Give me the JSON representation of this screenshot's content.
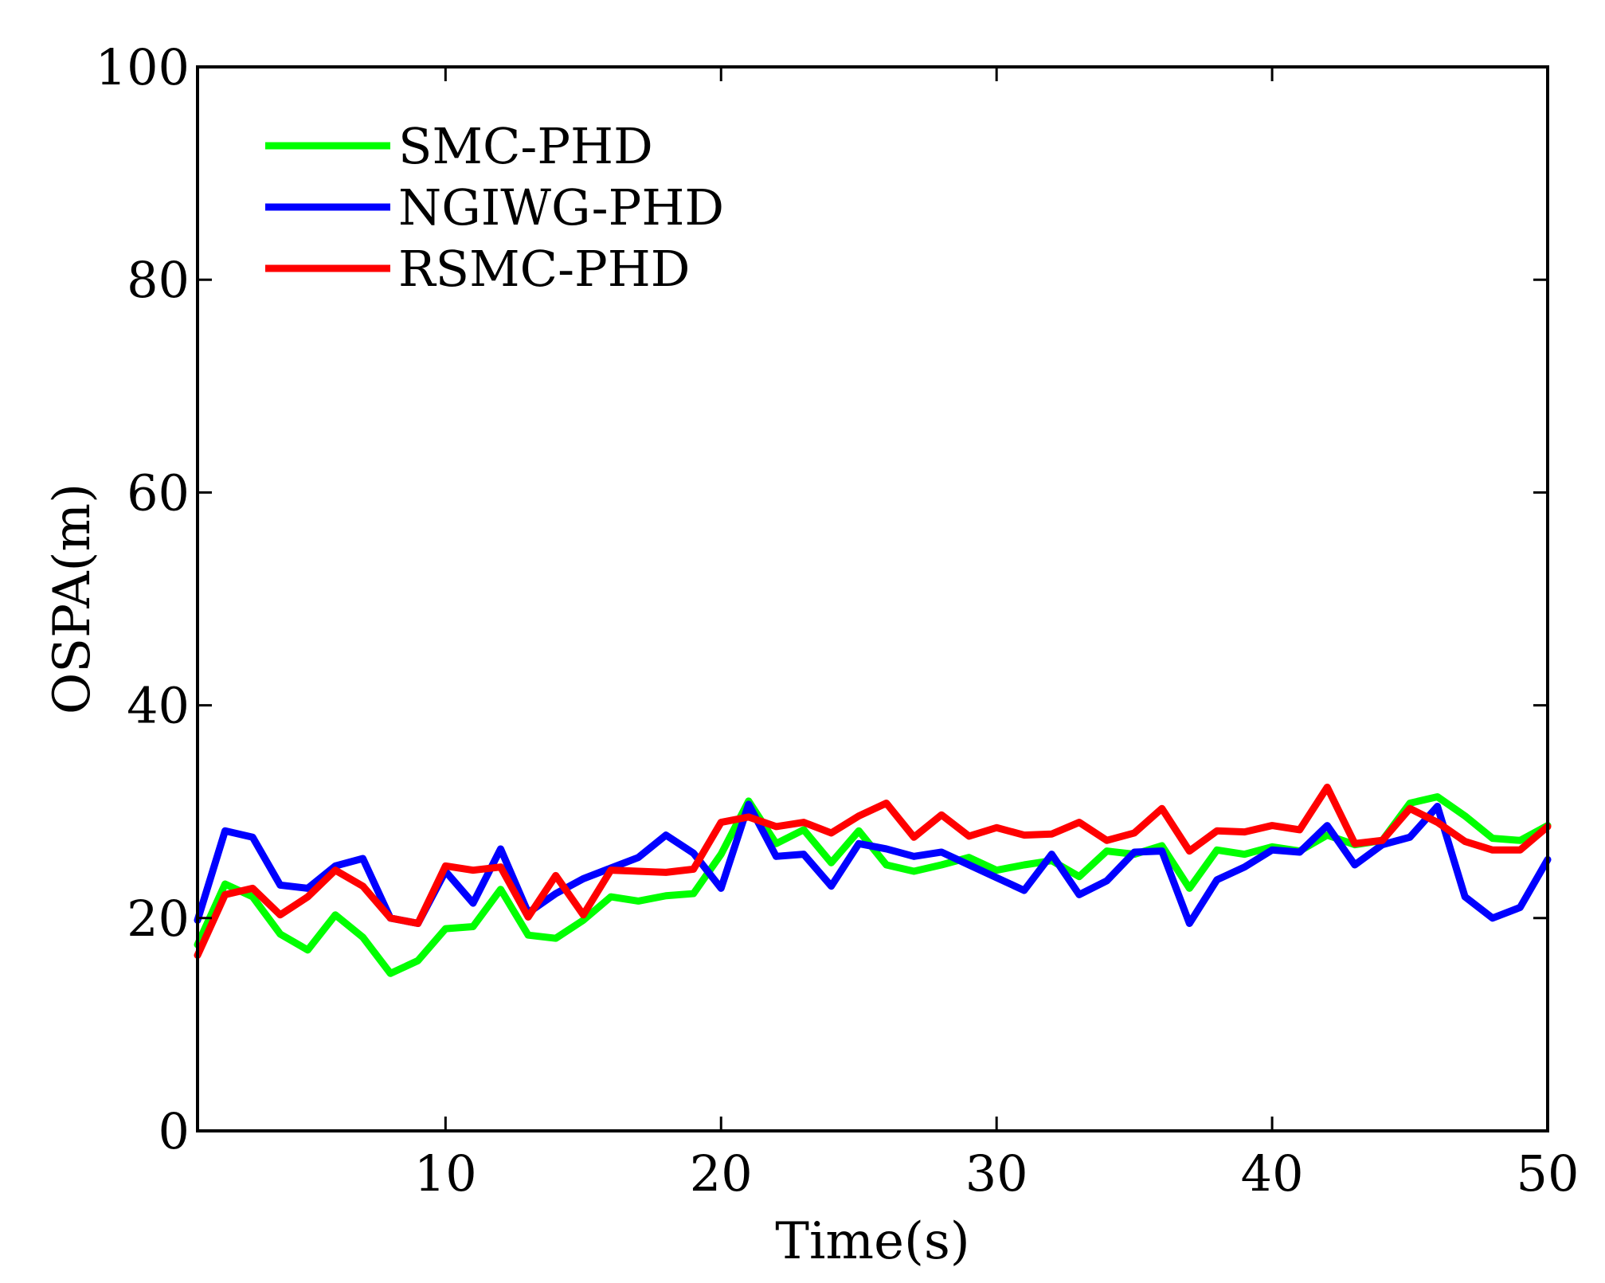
{
  "chart_data": {
    "type": "line",
    "title": "",
    "xlabel": "Time(s)",
    "ylabel": "OSPA(m)",
    "xlim": [
      1,
      50
    ],
    "ylim": [
      0,
      100
    ],
    "xticks": [
      10,
      20,
      30,
      40,
      50
    ],
    "yticks": [
      0,
      20,
      40,
      60,
      80,
      100
    ],
    "grid": false,
    "legend_position": "top-left",
    "x": [
      1,
      2,
      3,
      4,
      5,
      6,
      7,
      8,
      9,
      10,
      11,
      12,
      13,
      14,
      15,
      16,
      17,
      18,
      19,
      20,
      21,
      22,
      23,
      24,
      25,
      26,
      27,
      28,
      29,
      30,
      31,
      32,
      33,
      34,
      35,
      36,
      37,
      38,
      39,
      40,
      41,
      42,
      43,
      44,
      45,
      46,
      47,
      48,
      49,
      50
    ],
    "series": [
      {
        "name": "SMC-PHD",
        "color": "#00ff00",
        "values": [
          17.5,
          23.2,
          22.0,
          18.5,
          17.0,
          20.3,
          18.2,
          14.8,
          16.0,
          19.0,
          19.2,
          22.7,
          18.4,
          18.1,
          19.8,
          22.0,
          21.6,
          22.1,
          22.3,
          26.0,
          31.0,
          27.0,
          28.3,
          25.2,
          28.2,
          25.0,
          24.4,
          25.0,
          25.7,
          24.5,
          25.0,
          25.4,
          23.9,
          26.3,
          26.0,
          26.8,
          22.8,
          26.4,
          26.0,
          26.7,
          26.3,
          27.8,
          26.9,
          27.3,
          30.8,
          31.4,
          29.6,
          27.5,
          27.3,
          28.7
        ]
      },
      {
        "name": "NGIWG-PHD",
        "color": "#0000ff",
        "values": [
          19.8,
          28.2,
          27.6,
          23.1,
          22.8,
          24.9,
          25.6,
          20.0,
          19.5,
          24.4,
          21.4,
          26.5,
          20.5,
          22.3,
          23.7,
          24.7,
          25.7,
          27.8,
          26.1,
          22.8,
          30.7,
          25.8,
          26.0,
          23.0,
          27.0,
          26.5,
          25.8,
          26.2,
          25.0,
          23.8,
          22.6,
          26.0,
          22.2,
          23.5,
          26.2,
          26.3,
          19.5,
          23.6,
          24.8,
          26.4,
          26.2,
          28.7,
          25.0,
          26.9,
          27.6,
          30.5,
          22.0,
          20.0,
          21.0,
          25.5
        ]
      },
      {
        "name": "RSMC-PHD",
        "color": "#ff0000",
        "values": [
          16.5,
          22.2,
          22.8,
          20.3,
          22.0,
          24.5,
          23.0,
          20.0,
          19.5,
          24.9,
          24.5,
          24.8,
          20.1,
          24.0,
          20.3,
          24.5,
          24.4,
          24.3,
          24.6,
          29.0,
          29.5,
          28.6,
          29.0,
          28.0,
          29.6,
          30.8,
          27.6,
          29.7,
          27.7,
          28.5,
          27.8,
          27.9,
          29.0,
          27.3,
          28.0,
          30.3,
          26.3,
          28.2,
          28.1,
          28.7,
          28.3,
          32.3,
          27.0,
          27.3,
          30.3,
          29.0,
          27.2,
          26.4,
          26.4,
          28.6
        ]
      }
    ]
  }
}
